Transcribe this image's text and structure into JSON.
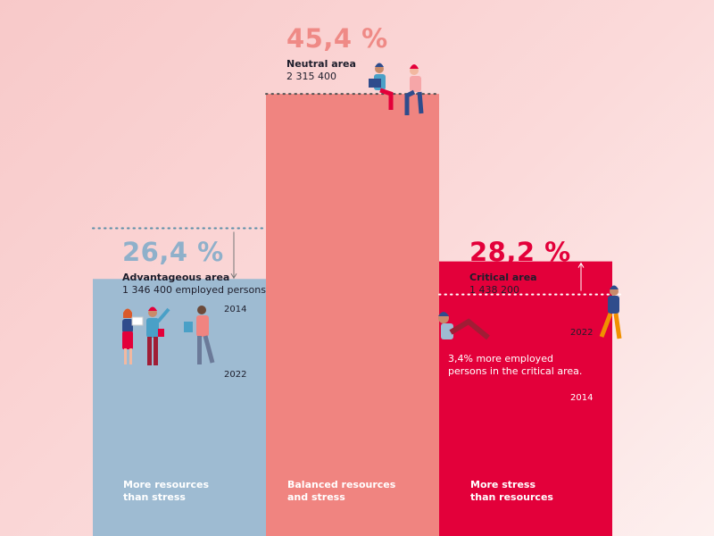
{
  "colors": {
    "advantageous": "#9ebbd2",
    "neutral": "#f08480",
    "critical": "#e3003a",
    "advantageous_text": "#8fb0ca",
    "neutral_text": "#ef8a86",
    "critical_text": "#e3003a",
    "dots_blue": "#5b8fa8",
    "dots_dark": "#555555",
    "dots_light": "#ffffff"
  },
  "chart_data": {
    "type": "bar",
    "categories": [
      "Advantageous area",
      "Neutral area",
      "Critical area"
    ],
    "values": [
      26.4,
      45.4,
      28.2
    ],
    "ylim": [
      0,
      50
    ],
    "bars": [
      {
        "percent_label": "26,4 %",
        "label": "Advantageous area",
        "count": "1 346 400 employed persons",
        "description": [
          "More resources",
          "than stress"
        ],
        "value_2014": 31.6,
        "year_top": "2014",
        "year_bottom": "2022"
      },
      {
        "percent_label": "45,4 %",
        "label": "Neutral area",
        "count": "2 315 400",
        "description": [
          "Balanced resources",
          "and stress"
        ]
      },
      {
        "percent_label": "28,2 %",
        "label": "Critical area",
        "count": "1 438 200",
        "description": [
          "More stress",
          "than resources"
        ],
        "value_2014": 24.8,
        "year_top": "2022",
        "year_bottom": "2014",
        "note": [
          "3,4% more employed",
          "persons in the critical area."
        ]
      }
    ]
  }
}
